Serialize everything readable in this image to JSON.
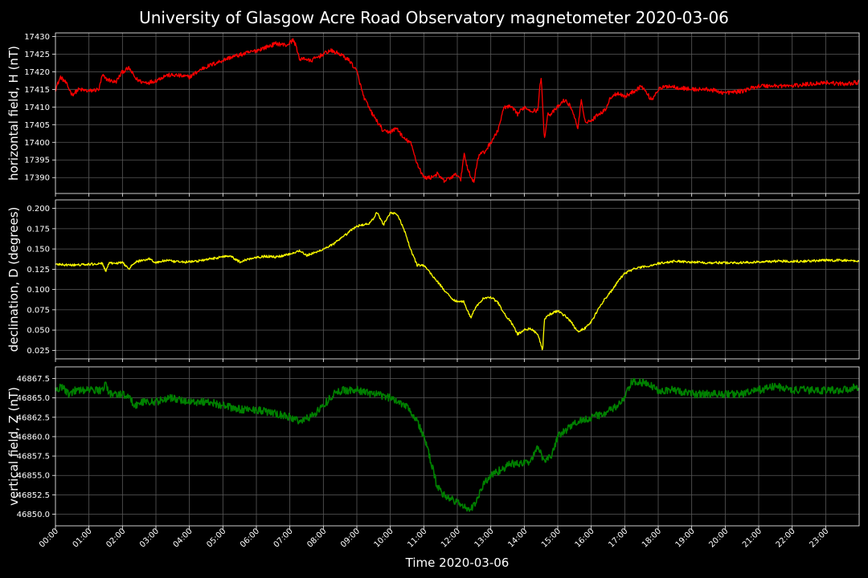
{
  "title": "University of Glasgow Acre Road Observatory magnetometer 2020-03-06",
  "colors": {
    "background": "#000000",
    "grid": "#5a5a5a",
    "axes": "#ffffff",
    "H": "#ff0000",
    "D": "#ffff00",
    "Z": "#008000"
  },
  "chart_data": [
    {
      "type": "line",
      "ylabel": "horizontal field, H (nT)",
      "color": "#ff0000",
      "ylim": [
        17385.5,
        17431
      ],
      "yticks": [
        17390,
        17395,
        17400,
        17405,
        17410,
        17415,
        17420,
        17425,
        17430
      ],
      "ytick_labels": [
        "17390",
        "17395",
        "17400",
        "17405",
        "17410",
        "17415",
        "17420",
        "17425",
        "17430"
      ],
      "noise": 1.2,
      "grid": true,
      "series": [
        {
          "x": [
            0,
            0.15,
            0.3,
            0.5,
            0.7,
            1.0,
            1.3,
            1.4,
            1.5,
            1.8,
            2.0,
            2.2,
            2.4,
            2.6,
            2.8,
            3.0,
            3.3,
            3.6,
            4.0,
            4.4,
            4.8,
            5.2,
            5.6,
            6.0,
            6.3,
            6.6,
            6.9,
            7.1,
            7.2,
            7.3,
            7.4,
            7.6,
            7.8,
            8.0,
            8.2,
            8.5,
            8.8,
            9.0,
            9.2,
            9.4,
            9.6,
            9.8,
            10.0,
            10.2,
            10.4,
            10.6,
            10.8,
            11.0,
            11.2,
            11.4,
            11.6,
            11.8,
            12.0,
            12.1,
            12.2,
            12.3,
            12.4,
            12.5,
            12.6,
            12.7,
            12.8,
            13.0,
            13.2,
            13.4,
            13.6,
            13.8,
            14.0,
            14.2,
            14.4,
            14.5,
            14.6,
            14.7,
            14.8,
            15.0,
            15.2,
            15.4,
            15.6,
            15.7,
            15.8,
            16.0,
            16.2,
            16.4,
            16.6,
            16.8,
            17.0,
            17.2,
            17.5,
            17.8,
            18.0,
            18.3,
            18.6,
            19.0,
            19.5,
            20.0,
            20.5,
            21.0,
            21.5,
            22.0,
            22.5,
            23.0,
            23.5,
            24.0
          ],
          "y": [
            17415,
            17418.5,
            17417,
            17413.5,
            17415,
            17414.5,
            17415,
            17419,
            17418,
            17417,
            17420,
            17421,
            17418,
            17417,
            17417,
            17417.5,
            17419,
            17419,
            17418.5,
            17421,
            17422.5,
            17424,
            17425,
            17426,
            17427,
            17428,
            17427.5,
            17429,
            17427,
            17423,
            17424,
            17423,
            17424,
            17425,
            17426,
            17425,
            17423,
            17420,
            17413,
            17409,
            17406,
            17403,
            17403,
            17404,
            17401,
            17400,
            17394,
            17390,
            17390,
            17391,
            17389,
            17390,
            17391,
            17389,
            17397,
            17393,
            17390,
            17389,
            17395,
            17397,
            17397,
            17400,
            17403,
            17410,
            17410,
            17408,
            17410,
            17409,
            17409,
            17419,
            17401,
            17408,
            17408,
            17410,
            17412,
            17410,
            17404,
            17412,
            17406,
            17406,
            17408,
            17409,
            17413,
            17414,
            17413,
            17414,
            17416,
            17412,
            17415,
            17416,
            17415.5,
            17415,
            17415,
            17414,
            17414.5,
            17416,
            17416,
            17416,
            17416.5,
            17417,
            17416.5,
            17417
          ]
        }
      ]
    },
    {
      "type": "line",
      "ylabel": "declination, D (degrees)",
      "color": "#ffff00",
      "ylim": [
        0.0145,
        0.2105
      ],
      "yticks": [
        0.025,
        0.05,
        0.075,
        0.1,
        0.125,
        0.15,
        0.175,
        0.2
      ],
      "ytick_labels": [
        "0.025",
        "0.050",
        "0.075",
        "0.100",
        "0.125",
        "0.150",
        "0.175",
        "0.200"
      ],
      "noise": 0.003,
      "grid": true,
      "series": [
        {
          "x": [
            0,
            0.5,
            1.0,
            1.4,
            1.5,
            1.6,
            2.0,
            2.2,
            2.4,
            2.6,
            2.8,
            3.0,
            3.3,
            3.6,
            4.0,
            4.4,
            4.8,
            5.2,
            5.5,
            5.8,
            6.0,
            6.3,
            6.6,
            7.0,
            7.3,
            7.5,
            7.8,
            8.0,
            8.3,
            8.6,
            8.8,
            9.0,
            9.2,
            9.4,
            9.5,
            9.6,
            9.8,
            10.0,
            10.2,
            10.4,
            10.6,
            10.8,
            11.0,
            11.2,
            11.4,
            11.6,
            11.8,
            12.0,
            12.2,
            12.4,
            12.5,
            12.6,
            12.8,
            13.0,
            13.2,
            13.4,
            13.6,
            13.8,
            14.0,
            14.2,
            14.4,
            14.55,
            14.6,
            14.7,
            14.8,
            15.0,
            15.2,
            15.4,
            15.6,
            15.8,
            16.0,
            16.2,
            16.4,
            16.6,
            16.8,
            17.0,
            17.3,
            17.6,
            18.0,
            18.5,
            19.0,
            19.5,
            20.0,
            20.5,
            21.0,
            21.5,
            22.0,
            22.5,
            23.0,
            23.5,
            24.0
          ],
          "y": [
            0.131,
            0.13,
            0.131,
            0.132,
            0.123,
            0.132,
            0.133,
            0.126,
            0.134,
            0.136,
            0.138,
            0.133,
            0.136,
            0.134,
            0.134,
            0.136,
            0.139,
            0.142,
            0.134,
            0.138,
            0.14,
            0.141,
            0.14,
            0.144,
            0.148,
            0.142,
            0.146,
            0.15,
            0.156,
            0.165,
            0.172,
            0.178,
            0.18,
            0.182,
            0.188,
            0.195,
            0.18,
            0.195,
            0.193,
            0.175,
            0.15,
            0.13,
            0.13,
            0.12,
            0.11,
            0.1,
            0.09,
            0.085,
            0.085,
            0.065,
            0.075,
            0.08,
            0.09,
            0.09,
            0.085,
            0.07,
            0.06,
            0.045,
            0.05,
            0.052,
            0.045,
            0.025,
            0.062,
            0.068,
            0.07,
            0.074,
            0.068,
            0.06,
            0.048,
            0.052,
            0.06,
            0.075,
            0.088,
            0.098,
            0.11,
            0.12,
            0.126,
            0.128,
            0.132,
            0.135,
            0.134,
            0.133,
            0.133,
            0.133,
            0.134,
            0.135,
            0.135,
            0.135,
            0.136,
            0.136,
            0.135
          ]
        }
      ]
    },
    {
      "type": "line",
      "ylabel": "vertical field, Z (nT)",
      "color": "#008000",
      "ylim": [
        46848.5,
        46869
      ],
      "yticks": [
        46850.0,
        46852.5,
        46855.0,
        46857.5,
        46860.0,
        46862.5,
        46865.0,
        46867.5
      ],
      "ytick_labels": [
        "46850.0",
        "46852.5",
        "46855.0",
        "46857.5",
        "46860.0",
        "46862.5",
        "46865.0",
        "46867.5"
      ],
      "noise": 1.0,
      "grid": true,
      "series": [
        {
          "x": [
            0,
            0.2,
            0.4,
            0.6,
            1.0,
            1.4,
            1.5,
            1.6,
            2.0,
            2.2,
            2.4,
            2.6,
            3.0,
            3.4,
            4.0,
            4.6,
            5.0,
            5.5,
            6.0,
            6.5,
            7.0,
            7.3,
            7.6,
            8.0,
            8.3,
            8.6,
            9.0,
            9.5,
            10.0,
            10.5,
            10.8,
            11.0,
            11.2,
            11.4,
            11.6,
            11.8,
            12.0,
            12.2,
            12.4,
            12.6,
            12.8,
            13.0,
            13.2,
            13.4,
            13.6,
            13.8,
            14.0,
            14.2,
            14.4,
            14.6,
            14.8,
            15.0,
            15.3,
            15.6,
            16.0,
            16.4,
            16.8,
            17.0,
            17.2,
            17.5,
            17.8,
            18.0,
            18.5,
            19.0,
            19.5,
            20.0,
            20.5,
            21.0,
            21.5,
            22.0,
            22.5,
            23.0,
            23.5,
            24.0
          ],
          "y": [
            46866,
            46866.5,
            46865.5,
            46866,
            46866,
            46866,
            46867,
            46865.5,
            46865.5,
            46865,
            46864,
            46864.5,
            46864.5,
            46865,
            46864.5,
            46864.5,
            46864,
            46863.5,
            46863.5,
            46863,
            46862.5,
            46862,
            46862.5,
            46864,
            46865.5,
            46866,
            46866,
            46865.5,
            46865,
            46864,
            46862,
            46860,
            46857,
            46853.5,
            46852.5,
            46852,
            46851.5,
            46851,
            46850.5,
            46852,
            46854,
            46855,
            46855.5,
            46856,
            46856.5,
            46856.5,
            46856.5,
            46857,
            46858.5,
            46857,
            46857.5,
            46860,
            46861,
            46862,
            46862.5,
            46863,
            46864,
            46865,
            46867,
            46867,
            46866.5,
            46866,
            46866,
            46865.5,
            46865.5,
            46865.5,
            46865.5,
            46866,
            46866.5,
            46866,
            46866,
            46866,
            46866,
            46866.5
          ]
        }
      ]
    }
  ],
  "x_axis": {
    "xlabel": "Time 2020-03-06",
    "xlim": [
      0,
      24
    ],
    "ticks": [
      "00:00",
      "01:00",
      "02:00",
      "03:00",
      "04:00",
      "05:00",
      "06:00",
      "07:00",
      "08:00",
      "09:00",
      "10:00",
      "11:00",
      "12:00",
      "13:00",
      "14:00",
      "15:00",
      "16:00",
      "17:00",
      "18:00",
      "19:00",
      "20:00",
      "21:00",
      "22:00",
      "23:00"
    ]
  }
}
